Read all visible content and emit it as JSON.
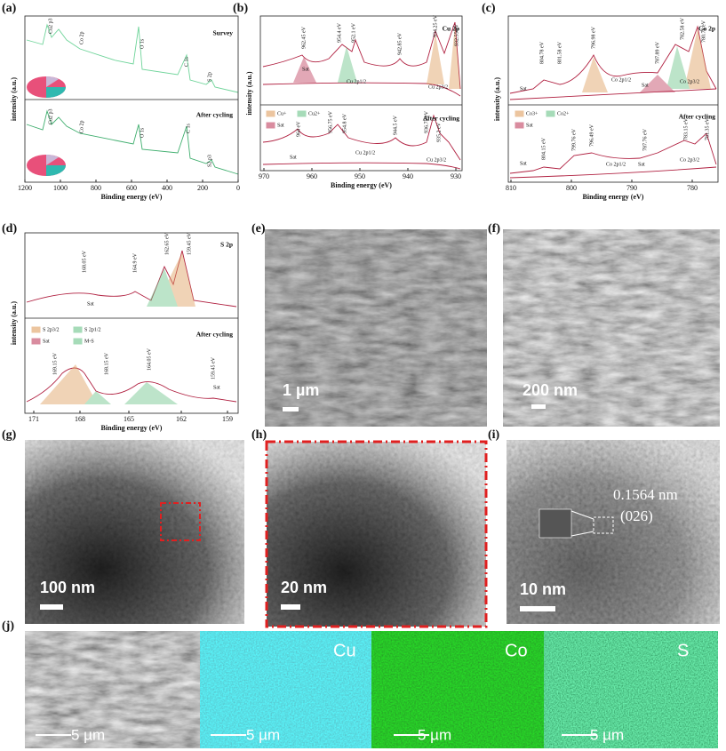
{
  "panel_labels": [
    "(a)",
    "(b)",
    "(c)",
    "(d)",
    "(e)",
    "(f)",
    "(g)",
    "(h)",
    "(i)",
    "(j)"
  ],
  "xps": [
    {
      "x_title": "Binding energy (eV)",
      "y_title": "intensity (a.u.)",
      "x_ticks": [
        1200,
        1000,
        800,
        600,
        400,
        200,
        0
      ],
      "top": [
        "Survey",
        "Cu2 p3",
        "Co 2p",
        "O 1s",
        "C 1s",
        "S 2p"
      ],
      "bottom": [
        "After cycling",
        "Cu2 p3",
        "Co 2p",
        "O 1s",
        "C 1s",
        "S2 p3"
      ]
    },
    {
      "x_title": "Binding energy (eV)",
      "y_title": "intensity (a.u.)",
      "x_ticks": [
        970,
        960,
        950,
        940,
        930
      ],
      "top": [
        "Cu 2p",
        "962.45 eV",
        "954.4 eV",
        "952.1 eV",
        "942.85 eV",
        "934.25 eV",
        "932.55 eV",
        "Sat",
        "Cu 2p1/2",
        "Cu 2p3/2"
      ],
      "legend": [
        "Cu+",
        "Cu2+",
        "Sat"
      ],
      "bottom": [
        "After cycling",
        "964 eV",
        "956.75 eV",
        "954.8 eV",
        "944.5 eV",
        "936.75 eV",
        "935.2 eV",
        "Cu 2p1/2",
        "Cu 2p3/2",
        "Sat"
      ]
    },
    {
      "x_title": "Binding energy (eV)",
      "y_title": "intensity (a.u.)",
      "x_ticks": [
        810,
        800,
        790,
        780
      ],
      "top": [
        "Co 2p",
        "804.78 eV",
        "801.58 eV",
        "796.98 eV",
        "787.89 eV",
        "782.58 eV",
        "780.78 eV",
        "Sat",
        "Co 2p1/2",
        "Sat",
        "Co 2p3/2"
      ],
      "legend": [
        "Co3+",
        "Co2+",
        "Sat"
      ],
      "bottom": [
        "After cycling",
        "804.15 eV",
        "799.76 eV",
        "796.49 eV",
        "787.76 eV",
        "783.15 eV",
        "781.35 eV",
        "Sat",
        "Co 2p1/2",
        "Sat",
        "Co 2p3/2"
      ]
    },
    {
      "x_title": "Binding energy (eV)",
      "y_title": "intensity (a.u.)",
      "x_ticks": [
        171,
        168,
        165,
        162,
        159
      ],
      "top": [
        "S 2p",
        "168.05 eV",
        "164.9 eV",
        "162.65 eV",
        "159.45 eV",
        "Sat"
      ],
      "legend": [
        "S 2p3/2",
        "S 2p1/2",
        "Sat",
        "M-S"
      ],
      "bottom": [
        "After cycling",
        "169.15 eV",
        "168.15 eV",
        "164.05 eV",
        "159.45 eV",
        "Sat"
      ]
    }
  ],
  "images": [
    {
      "scale": "1 µm"
    },
    {
      "scale": "200 nm"
    },
    {
      "scale": "100 nm"
    },
    {
      "scale": "20 nm"
    },
    {
      "scale": "10 nm",
      "d_spacing": "0.1564 nm",
      "plane": "(026)"
    }
  ],
  "eds": [
    {
      "scale": "5 µm"
    },
    {
      "element": "Cu",
      "scale": "5 µm"
    },
    {
      "element": "Co",
      "scale": "5 µm"
    },
    {
      "element": "S",
      "scale": "5 µm"
    }
  ]
}
